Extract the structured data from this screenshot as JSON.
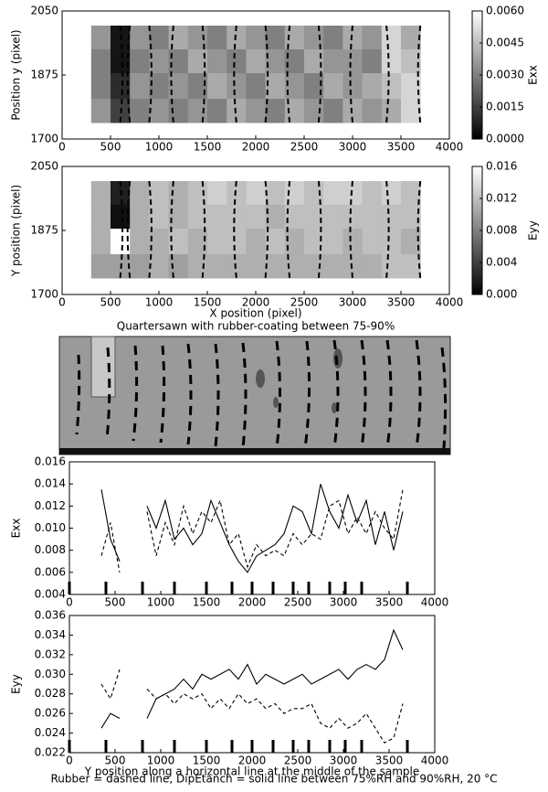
{
  "chart_data": [
    {
      "type": "heatmap",
      "ylabel": "Position y (pixel)",
      "xlim": [
        0,
        4000
      ],
      "xticks": [
        0,
        500,
        1000,
        1500,
        2000,
        2500,
        3000,
        3500,
        4000
      ],
      "ylim": [
        1700,
        2050
      ],
      "yticks": [
        1700,
        1875,
        2050
      ],
      "x_edges": [
        300,
        500,
        700,
        900,
        1100,
        1300,
        1500,
        1700,
        1900,
        2100,
        2300,
        2500,
        2700,
        2900,
        3100,
        3300,
        3500,
        3700
      ],
      "y_edges": [
        2010,
        1945,
        1880,
        1810,
        1745
      ],
      "z": [
        [
          0.0035,
          0.0005,
          0.0035,
          0.003,
          0.004,
          0.0035,
          0.003,
          0.004,
          0.0035,
          0.003,
          0.004,
          0.0035,
          0.003,
          0.004,
          0.0035,
          0.005,
          0.004
        ],
        [
          0.003,
          0.0005,
          0.003,
          0.0035,
          0.003,
          0.004,
          0.0035,
          0.003,
          0.004,
          0.0035,
          0.003,
          0.004,
          0.0035,
          0.0035,
          0.003,
          0.005,
          0.0045
        ],
        [
          0.003,
          0.001,
          0.0035,
          0.003,
          0.0035,
          0.003,
          0.004,
          0.0035,
          0.003,
          0.004,
          0.0035,
          0.003,
          0.004,
          0.0035,
          0.004,
          0.0045,
          0.005
        ],
        [
          0.0035,
          0.0015,
          0.003,
          0.0035,
          0.003,
          0.0035,
          0.003,
          0.004,
          0.0035,
          0.003,
          0.004,
          0.0035,
          0.003,
          0.004,
          0.0035,
          0.004,
          0.005
        ]
      ],
      "colormap": "gray",
      "clim": [
        0,
        0.006
      ],
      "clabel": "Exx",
      "cticks": [
        {
          "value": 0,
          "label": "0.0000"
        },
        {
          "value": 0.0015,
          "label": "0.0015"
        },
        {
          "value": 0.003,
          "label": "0.0030"
        },
        {
          "value": 0.0045,
          "label": "0.0045"
        },
        {
          "value": 0.006,
          "label": "0.0060"
        }
      ],
      "guide_x": [
        600,
        700,
        900,
        1150,
        1450,
        1800,
        2100,
        2350,
        2650,
        3000,
        3350,
        3700
      ]
    },
    {
      "type": "heatmap",
      "ylabel": "Y position (pixel)",
      "xlabel": "X position (pixel)",
      "subtitle": "Quartersawn with rubber-coating between 75-90%",
      "xlim": [
        0,
        4000
      ],
      "xticks": [
        0,
        500,
        1000,
        1500,
        2000,
        2500,
        3000,
        3500,
        4000
      ],
      "ylim": [
        1700,
        2050
      ],
      "yticks": [
        1700,
        1875,
        2050
      ],
      "x_edges": [
        300,
        500,
        700,
        900,
        1100,
        1300,
        1500,
        1700,
        1900,
        2100,
        2300,
        2500,
        2700,
        2900,
        3100,
        3300,
        3500,
        3700
      ],
      "y_edges": [
        2010,
        1945,
        1880,
        1810,
        1745
      ],
      "z": [
        [
          0.011,
          0.002,
          0.011,
          0.012,
          0.011,
          0.012,
          0.013,
          0.012,
          0.013,
          0.012,
          0.013,
          0.012,
          0.013,
          0.013,
          0.012,
          0.013,
          0.012
        ],
        [
          0.011,
          0.001,
          0.011,
          0.012,
          0.011,
          0.012,
          0.012,
          0.012,
          0.012,
          0.011,
          0.012,
          0.012,
          0.012,
          0.012,
          0.012,
          0.012,
          0.012
        ],
        [
          0.011,
          0.016,
          0.011,
          0.011,
          0.012,
          0.011,
          0.012,
          0.012,
          0.011,
          0.012,
          0.011,
          0.012,
          0.012,
          0.011,
          0.012,
          0.012,
          0.011
        ],
        [
          0.01,
          0.01,
          0.01,
          0.011,
          0.01,
          0.011,
          0.011,
          0.011,
          0.011,
          0.011,
          0.011,
          0.011,
          0.011,
          0.011,
          0.011,
          0.012,
          0.012
        ]
      ],
      "colormap": "gray",
      "clim": [
        0,
        0.016
      ],
      "clabel": "Eyy",
      "cticks": [
        {
          "value": 0,
          "label": "0.000"
        },
        {
          "value": 0.004,
          "label": "0.004"
        },
        {
          "value": 0.008,
          "label": "0.008"
        },
        {
          "value": 0.012,
          "label": "0.012"
        },
        {
          "value": 0.016,
          "label": "0.016"
        }
      ],
      "guide_x": [
        600,
        700,
        900,
        1150,
        1450,
        1800,
        2100,
        2350,
        2650,
        3000,
        3350,
        3700
      ]
    },
    {
      "type": "line",
      "ylabel": "Exx",
      "xlim": [
        0,
        4000
      ],
      "xticks": [
        0,
        500,
        1000,
        1500,
        2000,
        2500,
        3000,
        3500,
        4000
      ],
      "ylim": [
        0.004,
        0.016
      ],
      "yticks": [
        {
          "value": 0.004,
          "label": "0.004"
        },
        {
          "value": 0.006,
          "label": "0.006"
        },
        {
          "value": 0.008,
          "label": "0.008"
        },
        {
          "value": 0.01,
          "label": "0.010"
        },
        {
          "value": 0.012,
          "label": "0.012"
        },
        {
          "value": 0.014,
          "label": "0.014"
        },
        {
          "value": 0.016,
          "label": "0.016"
        }
      ],
      "x": [
        350,
        450,
        550,
        650,
        750,
        850,
        950,
        1050,
        1150,
        1250,
        1350,
        1450,
        1550,
        1650,
        1750,
        1850,
        1950,
        2050,
        2150,
        2250,
        2350,
        2450,
        2550,
        2650,
        2750,
        2850,
        2950,
        3050,
        3150,
        3250,
        3350,
        3450,
        3550,
        3650
      ],
      "series": [
        {
          "color": "#000000",
          "linestyle": "dashed",
          "values": [
            0.0075,
            0.0105,
            0.006,
            null,
            null,
            0.0115,
            0.0075,
            0.0105,
            0.0085,
            0.012,
            0.0095,
            0.0115,
            0.0105,
            0.0125,
            0.0085,
            0.0095,
            0.0065,
            0.0085,
            0.0075,
            0.008,
            0.0075,
            0.0095,
            0.0085,
            0.0095,
            0.009,
            0.012,
            0.0125,
            0.0095,
            0.011,
            0.0095,
            0.0115,
            0.01,
            0.009,
            0.0135
          ]
        },
        {
          "color": "#000000",
          "linestyle": "solid",
          "values": [
            0.0135,
            0.009,
            0.007,
            null,
            null,
            0.012,
            0.01,
            0.0125,
            0.009,
            0.01,
            0.0085,
            0.0095,
            0.0125,
            0.0105,
            0.0085,
            0.007,
            0.006,
            0.0075,
            0.008,
            0.0085,
            0.0095,
            0.012,
            0.0115,
            0.0095,
            0.014,
            0.0115,
            0.01,
            0.013,
            0.0105,
            0.0125,
            0.0085,
            0.0115,
            0.008,
            0.0115
          ]
        }
      ],
      "marker_x": [
        0,
        400,
        800,
        1150,
        1500,
        1780,
        2000,
        2230,
        2450,
        2620,
        2850,
        3020,
        3200,
        3700
      ]
    },
    {
      "type": "line",
      "ylabel": "Eyy",
      "xlabel": "Y position along a horizontal line at the middle of the sample",
      "xlim": [
        0,
        4000
      ],
      "xticks": [
        0,
        500,
        1000,
        1500,
        2000,
        2500,
        3000,
        3500,
        4000
      ],
      "ylim": [
        0.022,
        0.036
      ],
      "yticks": [
        {
          "value": 0.022,
          "label": "0.022"
        },
        {
          "value": 0.024,
          "label": "0.024"
        },
        {
          "value": 0.026,
          "label": "0.026"
        },
        {
          "value": 0.028,
          "label": "0.028"
        },
        {
          "value": 0.03,
          "label": "0.030"
        },
        {
          "value": 0.032,
          "label": "0.032"
        },
        {
          "value": 0.034,
          "label": "0.034"
        },
        {
          "value": 0.036,
          "label": "0.036"
        }
      ],
      "x": [
        350,
        450,
        550,
        650,
        750,
        850,
        950,
        1050,
        1150,
        1250,
        1350,
        1450,
        1550,
        1650,
        1750,
        1850,
        1950,
        2050,
        2150,
        2250,
        2350,
        2450,
        2550,
        2650,
        2750,
        2850,
        2950,
        3050,
        3150,
        3250,
        3350,
        3450,
        3550,
        3650
      ],
      "series": [
        {
          "color": "#000000",
          "linestyle": "dashed",
          "values": [
            0.029,
            0.0275,
            0.0305,
            null,
            null,
            0.0285,
            0.0275,
            0.028,
            0.027,
            0.028,
            0.0275,
            0.028,
            0.0265,
            0.0275,
            0.0265,
            0.028,
            0.027,
            0.0275,
            0.0265,
            0.027,
            0.026,
            0.0265,
            0.0265,
            0.027,
            0.025,
            0.0245,
            0.0255,
            0.0245,
            0.025,
            0.026,
            0.0245,
            0.023,
            0.0235,
            0.027
          ]
        },
        {
          "color": "#000000",
          "linestyle": "solid",
          "values": [
            0.0245,
            0.026,
            0.0255,
            null,
            null,
            0.0255,
            0.0275,
            0.028,
            0.0285,
            0.0295,
            0.0285,
            0.03,
            0.0295,
            0.03,
            0.0305,
            0.0295,
            0.031,
            0.029,
            0.03,
            0.0295,
            0.029,
            0.0295,
            0.03,
            0.029,
            0.0295,
            0.03,
            0.0305,
            0.0295,
            0.0305,
            0.031,
            0.0305,
            0.0315,
            0.0345,
            0.0325
          ]
        }
      ],
      "marker_x": [
        0,
        400,
        800,
        1150,
        1500,
        1780,
        2000,
        2230,
        2450,
        2620,
        2850,
        3020,
        3200,
        3700
      ]
    }
  ],
  "caption": "Rubber = dashed line, DipEtanch = solid line between 75%RH and 90%RH, 20  °C"
}
